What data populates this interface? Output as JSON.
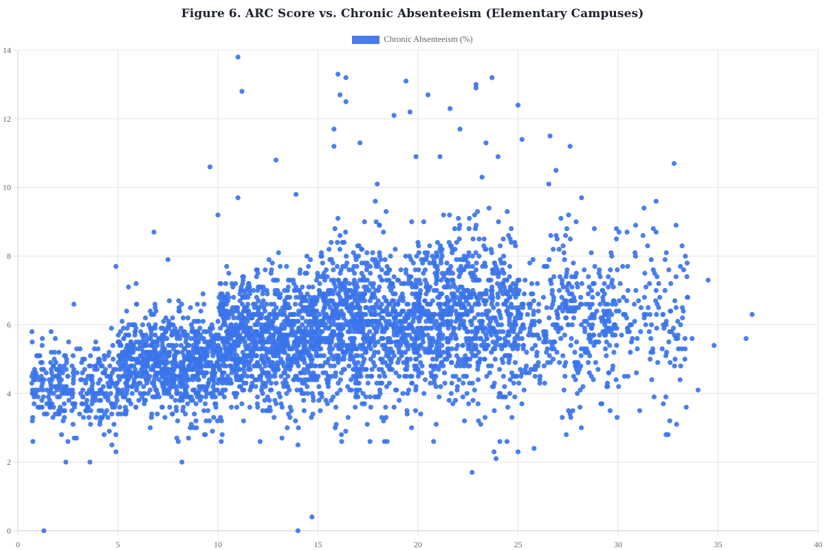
{
  "chart_data": {
    "type": "scatter",
    "title": "Figure 6. ARC Score vs. Chronic Absenteeism (Elementary Campuses)",
    "legend": [
      {
        "label": "Chronic Absenteeism (%)",
        "color": "#4a7bec"
      }
    ],
    "legend_position": "top",
    "xlabel": "",
    "ylabel": "",
    "xlim": [
      0,
      40
    ],
    "ylim": [
      0,
      14
    ],
    "x_ticks": [
      0,
      5,
      10,
      15,
      20,
      25,
      30,
      35,
      40
    ],
    "y_ticks": [
      0,
      2,
      4,
      6,
      8,
      10,
      12,
      14
    ],
    "grid": true,
    "point_color": "#3b74ea",
    "point_radius": 3.6,
    "series": [
      {
        "name": "Chronic Absenteeism (%)",
        "approx_point_count": 4200,
        "dense_cluster": {
          "x_range": [
            0.7,
            33
          ],
          "y_quantization": 0.1,
          "segments": [
            {
              "x": [
                0.7,
                5
              ],
              "y_mean": 4.2,
              "y_sd": 0.6,
              "weight": 0.07
            },
            {
              "x": [
                5,
                10
              ],
              "y_mean": 4.8,
              "y_sd": 0.75,
              "weight": 0.18
            },
            {
              "x": [
                10,
                15
              ],
              "y_mean": 5.5,
              "y_sd": 0.95,
              "weight": 0.24
            },
            {
              "x": [
                15,
                20
              ],
              "y_mean": 6.0,
              "y_sd": 1.15,
              "weight": 0.21
            },
            {
              "x": [
                20,
                25
              ],
              "y_mean": 6.2,
              "y_sd": 1.25,
              "weight": 0.18
            },
            {
              "x": [
                25,
                30
              ],
              "y_mean": 6.1,
              "y_sd": 1.2,
              "weight": 0.09
            },
            {
              "x": [
                30,
                33.5
              ],
              "y_mean": 6.2,
              "y_sd": 1.3,
              "weight": 0.03
            }
          ]
        },
        "points": [
          [
            1.3,
            0.0
          ],
          [
            14.0,
            0.0
          ],
          [
            14.7,
            0.4
          ],
          [
            2.4,
            2.0
          ],
          [
            3.6,
            2.0
          ],
          [
            8.2,
            2.0
          ],
          [
            14.0,
            2.5
          ],
          [
            4.7,
            2.5
          ],
          [
            4.9,
            2.3
          ],
          [
            2.5,
            2.6
          ],
          [
            17.6,
            2.6
          ],
          [
            22.7,
            1.7
          ],
          [
            23.8,
            2.3
          ],
          [
            23.9,
            2.1
          ],
          [
            25.0,
            2.3
          ],
          [
            25.8,
            2.4
          ],
          [
            32.4,
            2.8
          ],
          [
            32.5,
            2.8
          ],
          [
            11.0,
            13.8
          ],
          [
            11.2,
            12.8
          ],
          [
            16.0,
            13.3
          ],
          [
            16.4,
            13.2
          ],
          [
            16.1,
            12.7
          ],
          [
            16.4,
            12.5
          ],
          [
            19.4,
            13.1
          ],
          [
            20.5,
            12.7
          ],
          [
            22.9,
            13.0
          ],
          [
            22.9,
            12.9
          ],
          [
            23.7,
            13.2
          ],
          [
            25.0,
            12.4
          ],
          [
            18.8,
            12.1
          ],
          [
            19.6,
            12.2
          ],
          [
            21.6,
            12.3
          ],
          [
            22.1,
            11.7
          ],
          [
            15.8,
            11.7
          ],
          [
            15.8,
            11.2
          ],
          [
            17.1,
            11.3
          ],
          [
            23.4,
            11.3
          ],
          [
            25.2,
            11.4
          ],
          [
            26.6,
            11.5
          ],
          [
            27.6,
            11.2
          ],
          [
            24.0,
            10.9
          ],
          [
            21.1,
            10.9
          ],
          [
            19.9,
            10.9
          ],
          [
            9.6,
            10.6
          ],
          [
            12.9,
            10.8
          ],
          [
            32.8,
            10.7
          ],
          [
            26.9,
            10.5
          ],
          [
            11.0,
            9.7
          ],
          [
            10.0,
            9.2
          ],
          [
            13.9,
            9.8
          ],
          [
            6.8,
            8.7
          ],
          [
            7.5,
            7.9
          ],
          [
            4.9,
            7.7
          ],
          [
            2.8,
            6.6
          ],
          [
            33.2,
            8.3
          ],
          [
            32.9,
            8.9
          ],
          [
            31.3,
            9.4
          ],
          [
            31.9,
            9.6
          ],
          [
            34.5,
            7.3
          ],
          [
            36.7,
            6.3
          ],
          [
            36.4,
            5.6
          ],
          [
            34.8,
            5.4
          ],
          [
            34.0,
            4.1
          ],
          [
            33.7,
            5.6
          ],
          [
            33.0,
            5.7
          ],
          [
            32.6,
            4.9
          ],
          [
            33.1,
            4.4
          ],
          [
            31.8,
            3.9
          ],
          [
            29.6,
            3.5
          ],
          [
            28.1,
            3.6
          ],
          [
            27.6,
            3.4
          ],
          [
            1.6,
            3.6
          ],
          [
            1.1,
            3.6
          ],
          [
            0.7,
            4.3
          ],
          [
            0.7,
            4.5
          ],
          [
            0.9,
            4.1
          ],
          [
            1.0,
            3.9
          ]
        ]
      }
    ]
  }
}
